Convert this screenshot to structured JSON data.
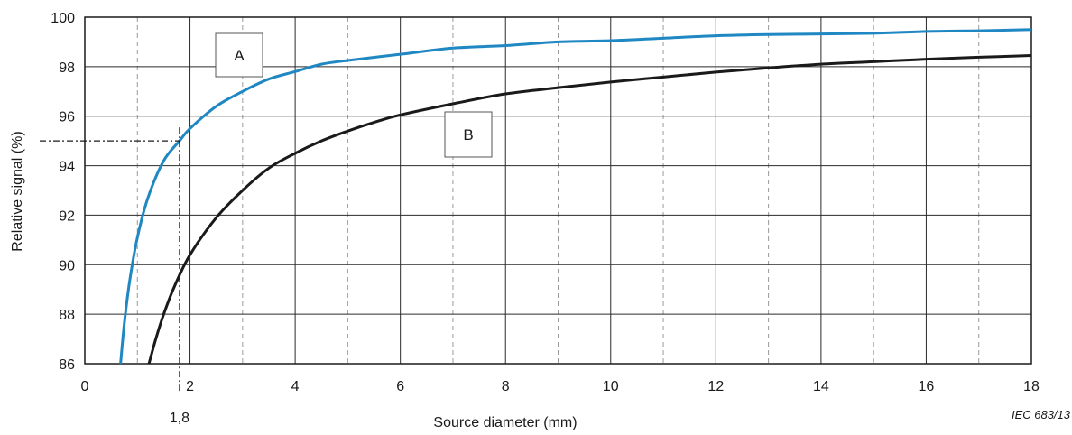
{
  "chart_data": {
    "type": "line",
    "xlabel": "Source diameter   (mm)",
    "ylabel": "Relative signal   (%)",
    "xlim": [
      0,
      18
    ],
    "ylim": [
      86,
      100
    ],
    "x_ticks": [
      0,
      2,
      4,
      6,
      8,
      10,
      12,
      14,
      16,
      18
    ],
    "x_tick_labels": [
      "0",
      "2",
      "4",
      "6",
      "8",
      "10",
      "12",
      "14",
      "16",
      "18"
    ],
    "y_ticks": [
      86,
      88,
      90,
      92,
      94,
      96,
      98,
      100
    ],
    "y_tick_labels": [
      "86",
      "88",
      "90",
      "92",
      "94",
      "96",
      "98",
      "100"
    ],
    "grid": "solid at even x and every y tick, dashed at odd x",
    "series": [
      {
        "name": "A",
        "color": "#1f87c2",
        "x": [
          0.68,
          0.75,
          0.85,
          1.0,
          1.2,
          1.5,
          1.8,
          2.0,
          2.5,
          3.0,
          3.5,
          4.0,
          4.5,
          5.0,
          6.0,
          7.0,
          8.0,
          9.0,
          10.0,
          11.0,
          12.0,
          13.0,
          14.0,
          15.0,
          16.0,
          17.0,
          18.0
        ],
        "y": [
          86.0,
          87.6,
          89.3,
          91.1,
          92.7,
          94.2,
          95.0,
          95.5,
          96.4,
          97.0,
          97.5,
          97.8,
          98.1,
          98.25,
          98.5,
          98.75,
          98.85,
          99.0,
          99.05,
          99.15,
          99.25,
          99.3,
          99.32,
          99.35,
          99.42,
          99.45,
          99.5
        ]
      },
      {
        "name": "B",
        "color": "#1a1a1a",
        "x": [
          1.22,
          1.35,
          1.5,
          1.7,
          2.0,
          2.5,
          3.0,
          3.5,
          4.0,
          4.5,
          5.0,
          5.5,
          6.0,
          7.0,
          8.0,
          9.0,
          10.0,
          11.0,
          12.0,
          13.0,
          14.0,
          15.0,
          16.0,
          17.0,
          18.0
        ],
        "y": [
          86.0,
          87.0,
          88.0,
          89.1,
          90.4,
          91.9,
          93.0,
          93.9,
          94.5,
          95.0,
          95.4,
          95.75,
          96.05,
          96.5,
          96.9,
          97.15,
          97.38,
          97.58,
          97.78,
          97.95,
          98.1,
          98.2,
          98.3,
          98.38,
          98.45
        ]
      }
    ],
    "annotations": {
      "marker_x": 1.8,
      "marker_y": 95,
      "marker_x_label": "1,8",
      "reference": "IEC   683/13"
    }
  }
}
